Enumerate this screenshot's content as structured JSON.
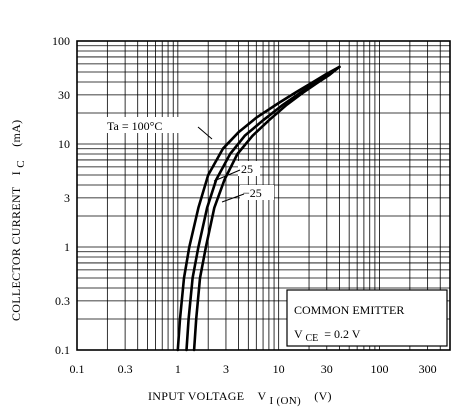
{
  "chart_data": {
    "type": "line",
    "xscale": "log",
    "yscale": "log",
    "xlim": [
      0.1,
      500
    ],
    "ylim": [
      0.1,
      100
    ],
    "xlabel": "INPUT VOLTAGE",
    "xlabel_symbol": "V",
    "xlabel_sub": "I (ON)",
    "xlabel_unit": "(V)",
    "ylabel": "COLLECTOR CURRENT",
    "ylabel_symbol": "I",
    "ylabel_sub": "C",
    "ylabel_unit": "(mA)",
    "grid": true,
    "x_ticks": [
      {
        "value": 0.1,
        "label": "0.1"
      },
      {
        "value": 0.3,
        "label": "0.3"
      },
      {
        "value": 1,
        "label": "1"
      },
      {
        "value": 3,
        "label": "3"
      },
      {
        "value": 10,
        "label": "10"
      },
      {
        "value": 30,
        "label": "30"
      },
      {
        "value": 100,
        "label": "100"
      },
      {
        "value": 300,
        "label": "300"
      }
    ],
    "y_ticks": [
      {
        "value": 0.1,
        "label": "0.1"
      },
      {
        "value": 0.3,
        "label": "0.3"
      },
      {
        "value": 1,
        "label": "1"
      },
      {
        "value": 3,
        "label": "3"
      },
      {
        "value": 10,
        "label": "10"
      },
      {
        "value": 30,
        "label": "30"
      },
      {
        "value": 100,
        "label": "100"
      }
    ],
    "series": [
      {
        "name": "Ta = 100°C",
        "x": [
          1.0,
          1.05,
          1.15,
          1.3,
          1.6,
          2.0,
          2.8,
          4.0,
          6.0,
          10,
          15,
          22,
          30,
          40
        ],
        "y": [
          0.1,
          0.2,
          0.5,
          1.0,
          2.4,
          5.0,
          9.0,
          13,
          18,
          25,
          32,
          40,
          48,
          56
        ]
      },
      {
        "name": "25",
        "x": [
          1.22,
          1.28,
          1.4,
          1.6,
          1.95,
          2.4,
          3.3,
          4.6,
          7.0,
          11,
          16,
          23,
          31,
          40
        ],
        "y": [
          0.1,
          0.2,
          0.5,
          1.0,
          2.4,
          4.5,
          8.0,
          12,
          17,
          24,
          31,
          39,
          47,
          56
        ]
      },
      {
        "name": "-25",
        "x": [
          1.45,
          1.52,
          1.66,
          1.9,
          2.3,
          2.9,
          3.9,
          5.5,
          8.0,
          12,
          17,
          24,
          32,
          40
        ],
        "y": [
          0.1,
          0.2,
          0.5,
          1.0,
          2.4,
          4.5,
          8.0,
          12,
          17,
          24,
          31,
          39,
          47,
          56
        ]
      }
    ],
    "annotations": {
      "curve_labels": [
        "Ta = 100°C",
        "25",
        "−25"
      ],
      "legend_box": [
        "COMMON EMITTER",
        "V",
        "CE",
        "= 0.2 V"
      ]
    }
  }
}
